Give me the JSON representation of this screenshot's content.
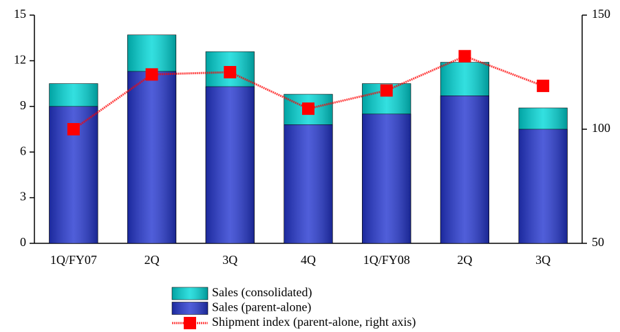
{
  "chart_data": {
    "type": "bar",
    "categories": [
      "1Q/FY07",
      "2Q",
      "3Q",
      "4Q",
      "1Q/FY08",
      "2Q",
      "3Q"
    ],
    "series": [
      {
        "name": "Sales (consolidated)",
        "color": "#00d8d8",
        "values": [
          10.5,
          13.7,
          12.6,
          9.8,
          10.5,
          11.9,
          8.9
        ]
      },
      {
        "name": "Sales (parent-alone)",
        "color": "#2436d0",
        "values": [
          9.0,
          11.3,
          10.3,
          7.8,
          8.5,
          9.7,
          7.5
        ]
      },
      {
        "name": "Shipment index (parent-alone, right axis)",
        "color": "#ff0000",
        "axis": "y2",
        "type": "line",
        "values": [
          100,
          124,
          125,
          109,
          117,
          132,
          119
        ]
      }
    ],
    "ylim": [
      0,
      15
    ],
    "yticks": [
      0,
      3,
      6,
      9,
      12,
      15
    ],
    "y2lim": [
      50,
      150
    ],
    "y2ticks": [
      50,
      100,
      150
    ],
    "grid": false
  }
}
